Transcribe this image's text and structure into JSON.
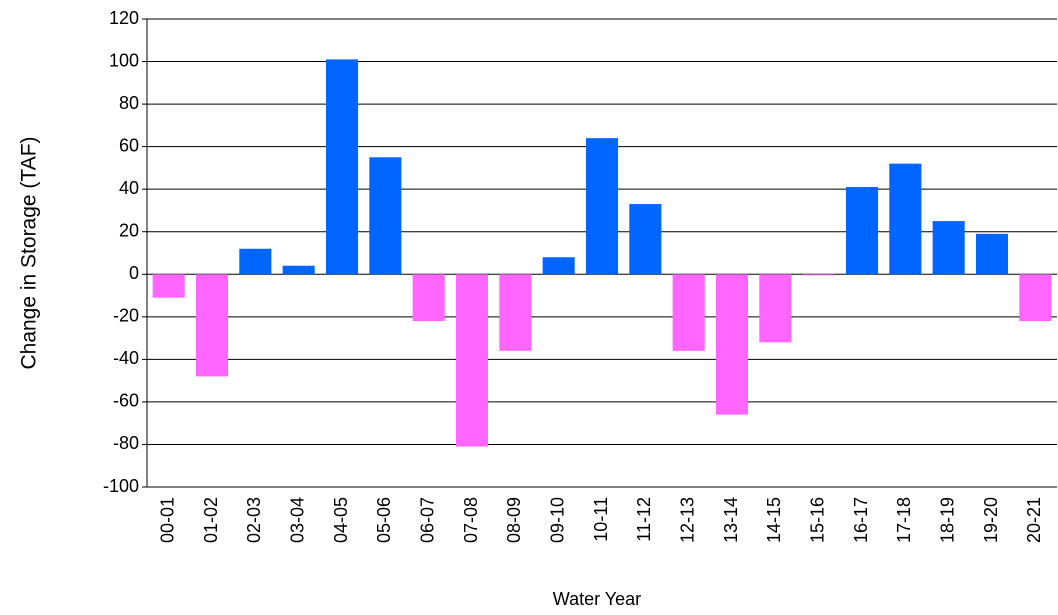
{
  "chart_data": {
    "type": "bar",
    "x_label": "Water Year",
    "y_label": "Change in Storage (TAF)",
    "categories": [
      "00-01",
      "01-02",
      "02-03",
      "03-04",
      "04-05",
      "05-06",
      "06-07",
      "07-08",
      "08-09",
      "09-10",
      "10-11",
      "11-12",
      "12-13",
      "13-14",
      "14-15",
      "15-16",
      "16-17",
      "17-18",
      "18-19",
      "19-20",
      "20-21"
    ],
    "values": [
      -11,
      -48,
      12,
      4,
      101,
      55,
      -22,
      -81,
      -36,
      8,
      64,
      33,
      -36,
      -66,
      -32,
      -0.5,
      41,
      52,
      25,
      19,
      -22
    ],
    "positive_color": "#0066ff",
    "negative_color": "#ff66ff",
    "ylim": [
      -100,
      120
    ],
    "yticks": [
      -100,
      -80,
      -60,
      -40,
      -20,
      0,
      20,
      40,
      60,
      80,
      100,
      120
    ],
    "grid": true
  }
}
